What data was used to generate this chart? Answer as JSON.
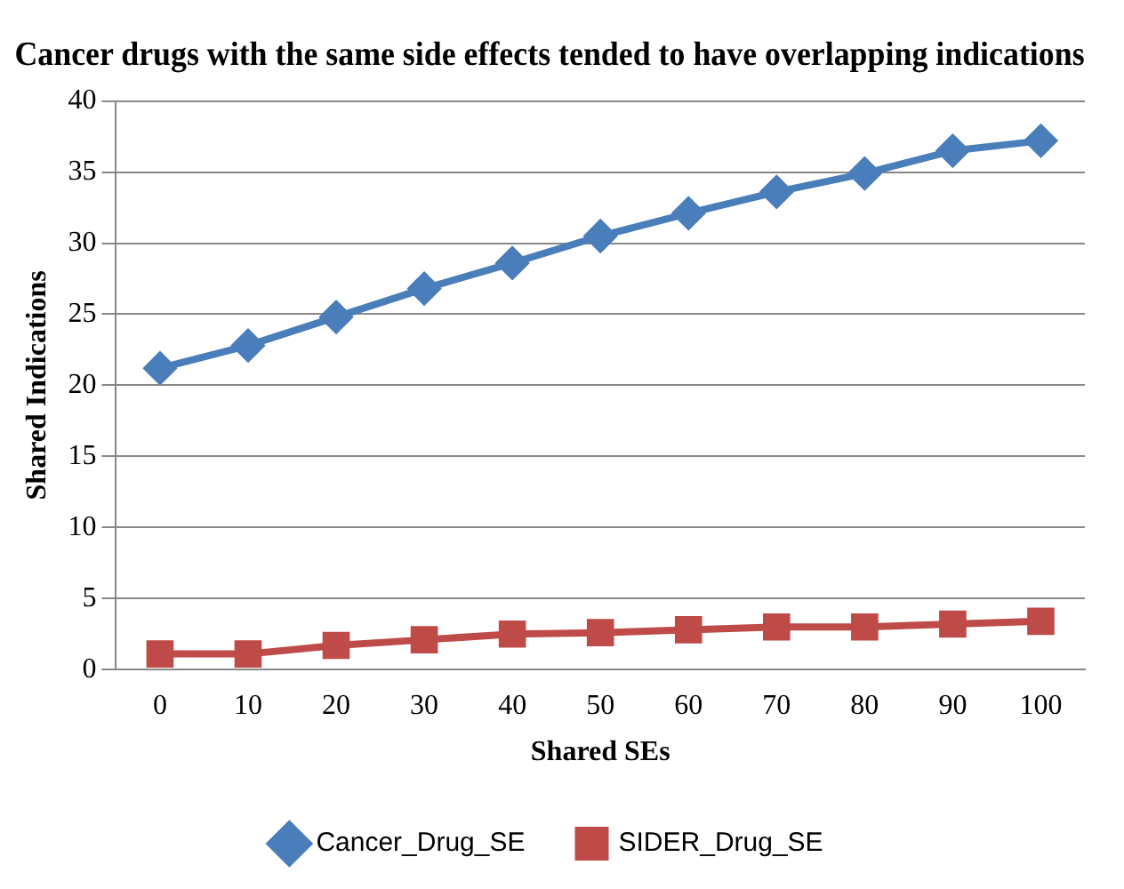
{
  "chart_data": {
    "type": "line",
    "title": "Cancer drugs with the same side effects tended to have overlapping indications",
    "xlabel": "Shared SEs",
    "ylabel": "Shared Indications",
    "categories": [
      "0",
      "10",
      "20",
      "30",
      "40",
      "50",
      "60",
      "70",
      "80",
      "90",
      "100"
    ],
    "series": [
      {
        "name": "Cancer_Drug_SE",
        "color": "#4a7ebb",
        "marker": "diamond",
        "values": [
          21.2,
          22.8,
          24.8,
          26.8,
          28.6,
          30.5,
          32.1,
          33.6,
          34.9,
          36.5,
          37.2
        ]
      },
      {
        "name": "SIDER_Drug_SE",
        "color": "#be4b48",
        "marker": "square",
        "values": [
          1.1,
          1.1,
          1.7,
          2.1,
          2.5,
          2.6,
          2.8,
          3.0,
          3.0,
          3.2,
          3.4
        ]
      }
    ],
    "ylim": [
      0,
      40
    ],
    "yticks": [
      0,
      5,
      10,
      15,
      20,
      25,
      30,
      35,
      40
    ],
    "grid": "y",
    "legend": "bottom",
    "line_style": "solid"
  }
}
